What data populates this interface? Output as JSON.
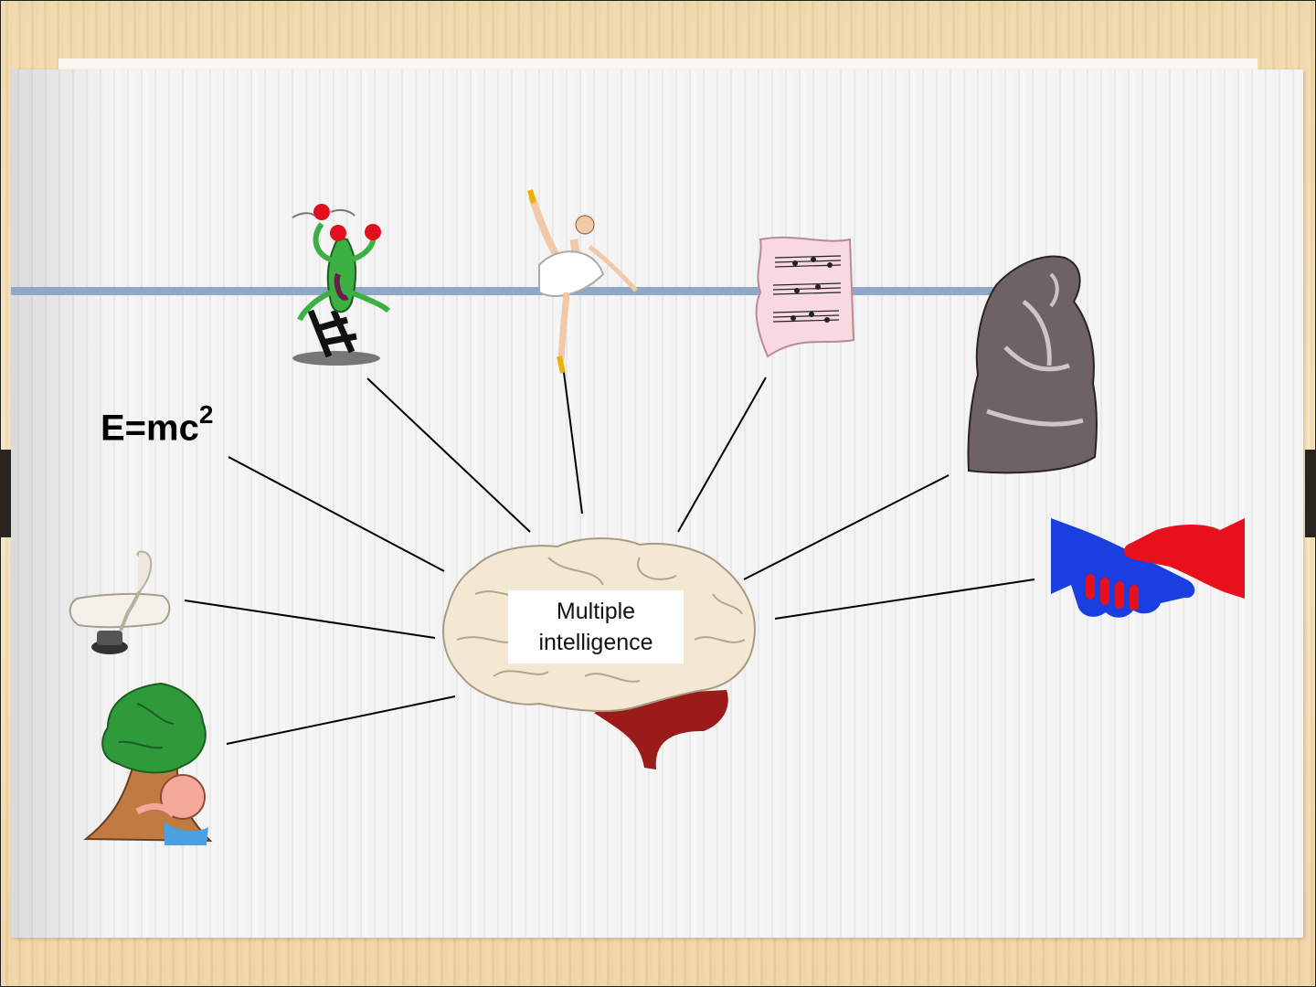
{
  "diagram": {
    "center_label_line1": "Multiple",
    "center_label_line2": "intelligence",
    "formula_base": "E=mc",
    "formula_exponent": "2"
  },
  "colors": {
    "background": "#f3e0b8",
    "slide": "#f2f2f2",
    "rule": "#8fa8c8",
    "brain": "#f2e8d4",
    "cerebellum": "#9b1b1b",
    "handshake_blue": "#1a3fe0",
    "handshake_red": "#e8101c",
    "tree": "#2e9a3a"
  },
  "icons": [
    "juggler-plant-icon",
    "ballerina-icon",
    "sheet-music-icon",
    "thinker-statue-icon",
    "handshake-icon",
    "quill-scroll-icon",
    "tree-hug-icon",
    "brain-icon"
  ]
}
